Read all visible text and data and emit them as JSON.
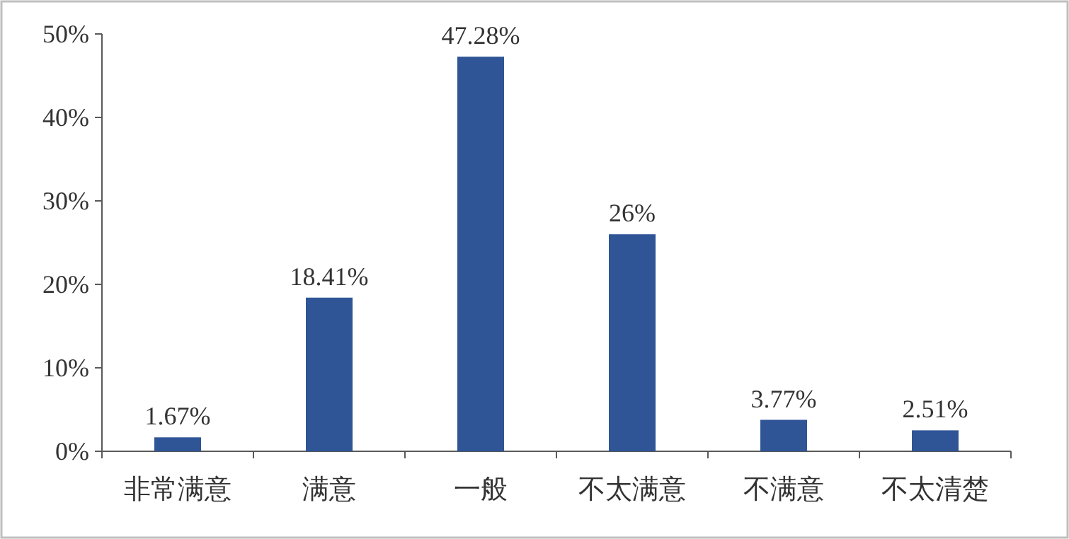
{
  "chart_data": {
    "type": "bar",
    "categories": [
      "非常满意",
      "满意",
      "一般",
      "不太满意",
      "不满意",
      "不太清楚"
    ],
    "values": [
      1.67,
      18.41,
      47.28,
      26,
      3.77,
      2.51
    ],
    "value_labels": [
      "1.67%",
      "18.41%",
      "47.28%",
      "26%",
      "3.77%",
      "2.51%"
    ],
    "color": "#2f5597",
    "ylim": [
      0,
      50
    ],
    "yticks": [
      {
        "value": 0,
        "label": "0%"
      },
      {
        "value": 10,
        "label": "10%"
      },
      {
        "value": 20,
        "label": "20%"
      },
      {
        "value": 30,
        "label": "30%"
      },
      {
        "value": 40,
        "label": "40%"
      },
      {
        "value": 50,
        "label": "50%"
      }
    ],
    "grid": false
  }
}
